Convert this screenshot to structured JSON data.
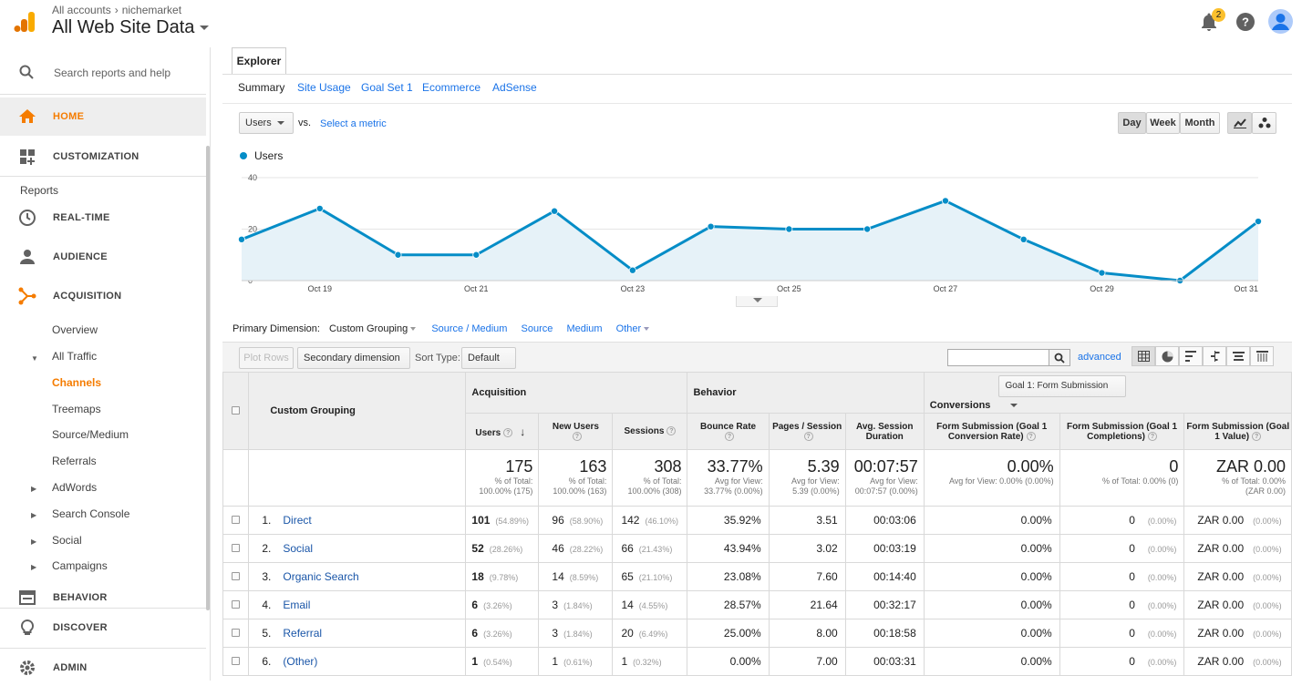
{
  "header": {
    "crumb_accounts": "All accounts",
    "crumb_account": "nichemarket",
    "property": "All Web Site Data",
    "notification_count": "2"
  },
  "sidebar": {
    "search_placeholder": "Search reports and help",
    "home": "HOME",
    "customization": "CUSTOMIZATION",
    "reports_label": "Reports",
    "realtime": "REAL-TIME",
    "audience": "AUDIENCE",
    "acquisition": "ACQUISITION",
    "overview": "Overview",
    "all_traffic": "All Traffic",
    "channels": "Channels",
    "treemaps": "Treemaps",
    "source_medium": "Source/Medium",
    "referrals": "Referrals",
    "adwords": "AdWords",
    "search_console": "Search Console",
    "social": "Social",
    "campaigns": "Campaigns",
    "behavior": "BEHAVIOR",
    "discover": "DISCOVER",
    "admin": "ADMIN"
  },
  "tabs": {
    "explorer": "Explorer",
    "sub": [
      "Summary",
      "Site Usage",
      "Goal Set 1",
      "Ecommerce",
      "AdSense"
    ]
  },
  "controls": {
    "metric": "Users",
    "vs": "vs.",
    "select_metric": "Select a metric",
    "day": "Day",
    "week": "Week",
    "month": "Month"
  },
  "chart_data": {
    "type": "line",
    "series": [
      {
        "name": "Users",
        "values": [
          16,
          28,
          10,
          10,
          27,
          4,
          21,
          20,
          20,
          31,
          16,
          3,
          0,
          23
        ]
      }
    ],
    "x": [
      "Oct 18",
      "Oct 19",
      "Oct 20",
      "Oct 21",
      "Oct 22",
      "Oct 23",
      "Oct 24",
      "Oct 25",
      "Oct 26",
      "Oct 27",
      "Oct 28",
      "Oct 29",
      "Oct 30",
      "Oct 31"
    ],
    "x_tick_labels": [
      "Oct 19",
      "Oct 21",
      "Oct 23",
      "Oct 25",
      "Oct 27",
      "Oct 29",
      "Oct 31"
    ],
    "y_tick_labels": [
      "40",
      "20",
      "0"
    ],
    "ylim": [
      0,
      40
    ],
    "color": "#058dc7",
    "fill": "#e6f2f8",
    "grid": true,
    "legend": "top-left"
  },
  "dimensions": {
    "label": "Primary Dimension:",
    "selected": "Custom Grouping",
    "options": [
      "Source / Medium",
      "Source",
      "Medium",
      "Other"
    ]
  },
  "toolbar": {
    "plot_rows": "Plot Rows",
    "secondary": "Secondary dimension",
    "sort_type_label": "Sort Type:",
    "sort_type": "Default",
    "advanced": "advanced"
  },
  "table": {
    "group_header": "Custom Grouping",
    "acquisition": "Acquisition",
    "behavior": "Behavior",
    "conversions": "Conversions",
    "goal_select": "Goal 1: Form Submission",
    "cols": {
      "users": "Users",
      "new_users": "New Users",
      "sessions": "Sessions",
      "bounce": "Bounce Rate",
      "pages": "Pages / Session",
      "duration": "Avg. Session Duration",
      "conv_rate": "Form Submission (Goal 1 Conversion Rate)",
      "completions": "Form Submission (Goal 1 Completions)",
      "value": "Form Submission (Goal 1 Value)"
    },
    "totals": {
      "users": "175",
      "users_sub1": "% of Total:",
      "users_sub2": "100.00% (175)",
      "new_users": "163",
      "new_users_sub1": "% of Total:",
      "new_users_sub2": "100.00% (163)",
      "sessions": "308",
      "sessions_sub1": "% of Total:",
      "sessions_sub2": "100.00% (308)",
      "bounce": "33.77%",
      "bounce_sub1": "Avg for View:",
      "bounce_sub2": "33.77% (0.00%)",
      "pages": "5.39",
      "pages_sub1": "Avg for View:",
      "pages_sub2": "5.39 (0.00%)",
      "duration": "00:07:57",
      "duration_sub1": "Avg for View:",
      "duration_sub2": "00:07:57 (0.00%)",
      "conv_rate": "0.00%",
      "conv_rate_sub": "Avg for View: 0.00% (0.00%)",
      "completions": "0",
      "completions_sub": "% of Total: 0.00% (0)",
      "value": "ZAR 0.00",
      "value_sub1": "% of Total: 0.00%",
      "value_sub2": "(ZAR 0.00)"
    },
    "rows": [
      {
        "idx": "1.",
        "name": "Direct",
        "users": "101",
        "users_pct": "(54.89%)",
        "new_users": "96",
        "new_users_pct": "(58.90%)",
        "sessions": "142",
        "sessions_pct": "(46.10%)",
        "bounce": "35.92%",
        "pages": "3.51",
        "duration": "00:03:06",
        "conv": "0.00%",
        "comp": "0",
        "comp_pct": "(0.00%)",
        "value": "ZAR 0.00",
        "value_pct": "(0.00%)"
      },
      {
        "idx": "2.",
        "name": "Social",
        "users": "52",
        "users_pct": "(28.26%)",
        "new_users": "46",
        "new_users_pct": "(28.22%)",
        "sessions": "66",
        "sessions_pct": "(21.43%)",
        "bounce": "43.94%",
        "pages": "3.02",
        "duration": "00:03:19",
        "conv": "0.00%",
        "comp": "0",
        "comp_pct": "(0.00%)",
        "value": "ZAR 0.00",
        "value_pct": "(0.00%)"
      },
      {
        "idx": "3.",
        "name": "Organic Search",
        "users": "18",
        "users_pct": "(9.78%)",
        "new_users": "14",
        "new_users_pct": "(8.59%)",
        "sessions": "65",
        "sessions_pct": "(21.10%)",
        "bounce": "23.08%",
        "pages": "7.60",
        "duration": "00:14:40",
        "conv": "0.00%",
        "comp": "0",
        "comp_pct": "(0.00%)",
        "value": "ZAR 0.00",
        "value_pct": "(0.00%)"
      },
      {
        "idx": "4.",
        "name": "Email",
        "users": "6",
        "users_pct": "(3.26%)",
        "new_users": "3",
        "new_users_pct": "(1.84%)",
        "sessions": "14",
        "sessions_pct": "(4.55%)",
        "bounce": "28.57%",
        "pages": "21.64",
        "duration": "00:32:17",
        "conv": "0.00%",
        "comp": "0",
        "comp_pct": "(0.00%)",
        "value": "ZAR 0.00",
        "value_pct": "(0.00%)"
      },
      {
        "idx": "5.",
        "name": "Referral",
        "users": "6",
        "users_pct": "(3.26%)",
        "new_users": "3",
        "new_users_pct": "(1.84%)",
        "sessions": "20",
        "sessions_pct": "(6.49%)",
        "bounce": "25.00%",
        "pages": "8.00",
        "duration": "00:18:58",
        "conv": "0.00%",
        "comp": "0",
        "comp_pct": "(0.00%)",
        "value": "ZAR 0.00",
        "value_pct": "(0.00%)"
      },
      {
        "idx": "6.",
        "name": "(Other)",
        "users": "1",
        "users_pct": "(0.54%)",
        "new_users": "1",
        "new_users_pct": "(0.61%)",
        "sessions": "1",
        "sessions_pct": "(0.32%)",
        "bounce": "0.00%",
        "pages": "7.00",
        "duration": "00:03:31",
        "conv": "0.00%",
        "comp": "0",
        "comp_pct": "(0.00%)",
        "value": "ZAR 0.00",
        "value_pct": "(0.00%)"
      }
    ]
  }
}
